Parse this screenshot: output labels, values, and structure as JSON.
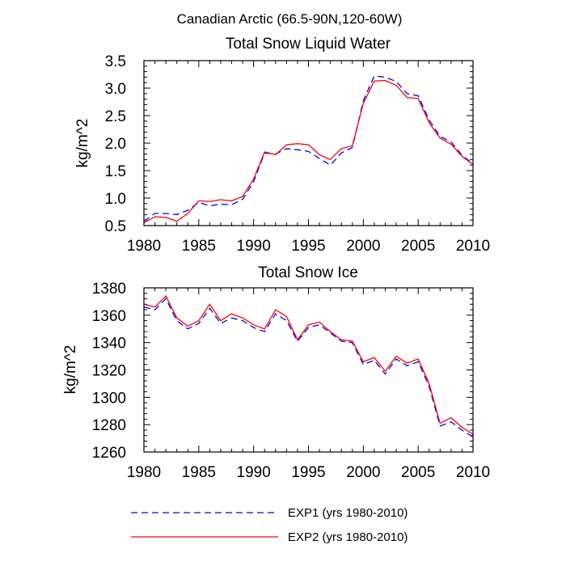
{
  "figure_title": "Canadian Arctic (66.5-90N,120-60W)",
  "legend": [
    {
      "label": "EXP1 (yrs 1980-2010)",
      "color": "#0000ff",
      "dash": "dashed"
    },
    {
      "label": "EXP2 (yrs 1980-2010)",
      "color": "#ff0000",
      "dash": "solid"
    }
  ],
  "chart_data": [
    {
      "type": "line",
      "title": "Total Snow Liquid Water",
      "xlabel": "",
      "ylabel": "kg/m^2",
      "xlim": [
        1980,
        2010
      ],
      "ylim": [
        0.5,
        3.5
      ],
      "xticks": [
        1980,
        1985,
        1990,
        1995,
        2000,
        2005,
        2010
      ],
      "yticks": [
        0.5,
        1.0,
        1.5,
        2.0,
        2.5,
        3.0,
        3.5
      ],
      "ytick_labels": [
        "0.5",
        "1.0",
        "1.5",
        "2.0",
        "2.5",
        "3.0",
        "3.5"
      ],
      "x": [
        1980,
        1981,
        1982,
        1983,
        1984,
        1985,
        1986,
        1987,
        1988,
        1989,
        1990,
        1991,
        1992,
        1993,
        1994,
        1995,
        1996,
        1997,
        1998,
        1999,
        2000,
        2001,
        2002,
        2003,
        2004,
        2005,
        2006,
        2007,
        2008,
        2009,
        2010
      ],
      "series": [
        {
          "name": "EXP1 (yrs 1980-2010)",
          "color": "#0000ff",
          "dash": "dashed",
          "values": [
            0.58,
            0.72,
            0.72,
            0.7,
            0.78,
            0.92,
            0.86,
            0.89,
            0.88,
            0.98,
            1.3,
            1.82,
            1.8,
            1.9,
            1.88,
            1.85,
            1.72,
            1.6,
            1.82,
            1.92,
            2.77,
            3.22,
            3.2,
            3.12,
            2.9,
            2.86,
            2.42,
            2.12,
            2.02,
            1.78,
            1.62
          ]
        },
        {
          "name": "EXP2 (yrs 1980-2010)",
          "color": "#ff0000",
          "dash": "solid",
          "values": [
            0.55,
            0.66,
            0.65,
            0.58,
            0.72,
            0.95,
            0.94,
            0.97,
            0.95,
            1.03,
            1.35,
            1.84,
            1.79,
            1.97,
            1.99,
            1.97,
            1.79,
            1.7,
            1.9,
            1.95,
            2.72,
            3.13,
            3.14,
            3.05,
            2.83,
            2.81,
            2.37,
            2.09,
            1.98,
            1.76,
            1.61
          ]
        }
      ]
    },
    {
      "type": "line",
      "title": "Total Snow Ice",
      "xlabel": "",
      "ylabel": "kg/m^2",
      "xlim": [
        1980,
        2010
      ],
      "ylim": [
        1260,
        1380
      ],
      "xticks": [
        1980,
        1985,
        1990,
        1995,
        2000,
        2005,
        2010
      ],
      "yticks": [
        1260,
        1280,
        1300,
        1320,
        1340,
        1360,
        1380
      ],
      "ytick_labels": [
        "1260",
        "1280",
        "1300",
        "1320",
        "1340",
        "1360",
        "1380"
      ],
      "x": [
        1980,
        1981,
        1982,
        1983,
        1984,
        1985,
        1986,
        1987,
        1988,
        1989,
        1990,
        1991,
        1992,
        1993,
        1994,
        1995,
        1996,
        1997,
        1998,
        1999,
        2000,
        2001,
        2002,
        2003,
        2004,
        2005,
        2006,
        2007,
        2008,
        2009,
        2010
      ],
      "series": [
        {
          "name": "EXP1 (yrs 1980-2010)",
          "color": "#0000ff",
          "dash": "dashed",
          "values": [
            1366,
            1364,
            1372,
            1356,
            1350,
            1354,
            1365,
            1354,
            1358,
            1356,
            1351,
            1348,
            1361,
            1356,
            1341,
            1351,
            1353,
            1347,
            1341,
            1340,
            1324,
            1327,
            1317,
            1328,
            1323,
            1326,
            1308,
            1279,
            1282,
            1276,
            1271
          ]
        },
        {
          "name": "EXP2 (yrs 1980-2010)",
          "color": "#ff0000",
          "dash": "solid",
          "values": [
            1368,
            1366,
            1374,
            1358,
            1352,
            1356,
            1368,
            1356,
            1361,
            1358,
            1353,
            1350,
            1364,
            1359,
            1342,
            1353,
            1355,
            1348,
            1342,
            1341,
            1326,
            1329,
            1319,
            1330,
            1325,
            1328,
            1310,
            1281,
            1285,
            1278,
            1273
          ]
        }
      ]
    }
  ]
}
